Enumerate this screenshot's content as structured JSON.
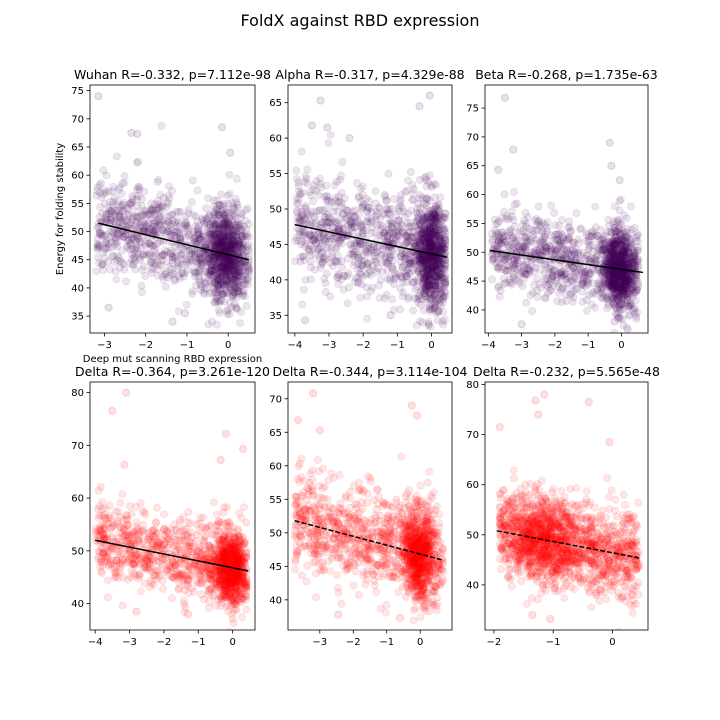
{
  "figure": {
    "title": "FoldX against RBD expression"
  },
  "chart_data": [
    {
      "type": "scatter",
      "title": "Wuhan R=-0.332, p=7.112e-98",
      "xlabel": "Deep mut scanning RBD expression",
      "ylabel": "Energy for folding stability",
      "xlim": [
        -3.35,
        0.65
      ],
      "ylim": [
        32,
        76
      ],
      "xticks": [
        -3,
        -2,
        -1,
        0
      ],
      "yticks": [
        35,
        40,
        45,
        50,
        55,
        60,
        65,
        70,
        75
      ],
      "color": "#440154",
      "line_color": "#000000",
      "line_style": "solid",
      "fit": {
        "x": [
          -3.15,
          0.5
        ],
        "y": [
          51.5,
          45.0
        ]
      },
      "cloud": {
        "n": 1500,
        "x_range": [
          -3.2,
          0.5
        ],
        "y_mean": 47.5,
        "y_sd": 4.2,
        "cluster_x": -0.05,
        "cluster_sd": 0.25,
        "cluster_frac": 0.45
      },
      "outliers": [
        [
          -3.15,
          74
        ],
        [
          -0.15,
          68.5
        ],
        [
          -2.35,
          67.5
        ],
        [
          -2.2,
          67.3
        ],
        [
          -1.35,
          34
        ],
        [
          -1.05,
          35.5
        ],
        [
          0.05,
          64
        ],
        [
          -2.9,
          36.5
        ]
      ]
    },
    {
      "type": "scatter",
      "title": "Alpha R=-0.317, p=4.329e-88",
      "xlabel": "",
      "ylabel": "",
      "xlim": [
        -4.2,
        0.6
      ],
      "ylim": [
        32.5,
        67.5
      ],
      "xticks": [
        -4,
        -3,
        -2,
        -1,
        0
      ],
      "yticks": [
        35,
        40,
        45,
        50,
        55,
        60,
        65
      ],
      "color": "#440154",
      "line_color": "#000000",
      "line_style": "solid",
      "fit": {
        "x": [
          -4.0,
          0.45
        ],
        "y": [
          47.8,
          43.2
        ]
      },
      "cloud": {
        "n": 1500,
        "x_range": [
          -4.0,
          0.4
        ],
        "y_mean": 45.0,
        "y_sd": 3.8,
        "cluster_x": -0.05,
        "cluster_sd": 0.25,
        "cluster_frac": 0.45
      },
      "outliers": [
        [
          -3.25,
          65.3
        ],
        [
          -0.05,
          66
        ],
        [
          -0.35,
          64.5
        ],
        [
          -3.5,
          61.8
        ],
        [
          -3.05,
          61.5
        ],
        [
          -2.4,
          60
        ],
        [
          -1.2,
          35
        ],
        [
          -3.7,
          34.3
        ],
        [
          0.2,
          35.5
        ]
      ]
    },
    {
      "type": "scatter",
      "title": "Beta R=-0.268, p=1.735e-63",
      "xlabel": "",
      "ylabel": "",
      "xlim": [
        -4.1,
        0.8
      ],
      "ylim": [
        36,
        79
      ],
      "xticks": [
        -4,
        -3,
        -2,
        -1,
        0
      ],
      "yticks": [
        40,
        45,
        50,
        55,
        60,
        65,
        70,
        75
      ],
      "color": "#440154",
      "line_color": "#000000",
      "line_style": "solid",
      "fit": {
        "x": [
          -3.95,
          0.65
        ],
        "y": [
          50.3,
          46.5
        ]
      },
      "cloud": {
        "n": 1500,
        "x_range": [
          -3.9,
          0.5
        ],
        "y_mean": 48.0,
        "y_sd": 3.5,
        "cluster_x": -0.05,
        "cluster_sd": 0.25,
        "cluster_frac": 0.45
      },
      "outliers": [
        [
          -3.5,
          76.8
        ],
        [
          -0.35,
          69
        ],
        [
          -3.25,
          67.8
        ],
        [
          -0.3,
          65
        ],
        [
          -3.7,
          64.3
        ],
        [
          -0.05,
          62.5
        ],
        [
          -3.0,
          37.5
        ],
        [
          -0.2,
          38
        ]
      ]
    },
    {
      "type": "scatter",
      "title": "Delta R=-0.364, p=3.261e-120",
      "xlabel": "",
      "ylabel": "",
      "xlim": [
        -4.15,
        0.65
      ],
      "ylim": [
        35,
        82
      ],
      "xticks": [
        -4,
        -3,
        -2,
        -1,
        0
      ],
      "yticks": [
        40,
        50,
        60,
        70,
        80
      ],
      "color": "#ff0000",
      "line_color": "#000000",
      "line_style": "solid",
      "fit": {
        "x": [
          -4.0,
          0.45
        ],
        "y": [
          52.0,
          46.2
        ]
      },
      "cloud": {
        "n": 1500,
        "x_range": [
          -4.0,
          0.4
        ],
        "y_mean": 49.0,
        "y_sd": 3.7,
        "cluster_x": -0.05,
        "cluster_sd": 0.25,
        "cluster_frac": 0.45
      },
      "outliers": [
        [
          -3.1,
          80
        ],
        [
          -3.5,
          76.5
        ],
        [
          -0.2,
          72.2
        ],
        [
          0.3,
          69.3
        ],
        [
          -0.35,
          67.2
        ],
        [
          -3.15,
          66.3
        ],
        [
          -2.8,
          38.5
        ],
        [
          -1.3,
          38
        ]
      ]
    },
    {
      "type": "scatter",
      "title": "Delta R=-0.344, p=3.114e-104",
      "xlabel": "",
      "ylabel": "",
      "xlim": [
        -3.95,
        0.95
      ],
      "ylim": [
        35.5,
        72.5
      ],
      "xticks": [
        -3,
        -2,
        -1,
        0
      ],
      "yticks": [
        40,
        45,
        50,
        55,
        60,
        65,
        70
      ],
      "color": "#ff0000",
      "line_color": "#000000",
      "line_style": "dashed",
      "fit": {
        "x": [
          -3.75,
          0.7
        ],
        "y": [
          51.8,
          45.9
        ]
      },
      "cloud": {
        "n": 1500,
        "x_range": [
          -3.75,
          0.7
        ],
        "y_mean": 48.5,
        "y_sd": 3.6,
        "cluster_x": -0.05,
        "cluster_sd": 0.25,
        "cluster_frac": 0.45
      },
      "outliers": [
        [
          -3.2,
          70.8
        ],
        [
          -3.65,
          66.8
        ],
        [
          -3.0,
          65.3
        ],
        [
          -0.25,
          69
        ],
        [
          -0.1,
          67.5
        ],
        [
          -2.45,
          37.8
        ],
        [
          -0.6,
          37.3
        ]
      ]
    },
    {
      "type": "scatter",
      "title": "Delta R=-0.232, p=5.565e-48",
      "xlabel": "",
      "ylabel": "",
      "xlim": [
        -2.15,
        0.6
      ],
      "ylim": [
        31,
        80.5
      ],
      "xticks": [
        -2,
        -1,
        0
      ],
      "yticks": [
        40,
        50,
        60,
        70,
        80
      ],
      "color": "#ff0000",
      "line_color": "#000000",
      "line_style": "dashed",
      "fit": {
        "x": [
          -1.95,
          0.45
        ],
        "y": [
          50.8,
          45.4
        ]
      },
      "cloud": {
        "n": 1700,
        "x_range": [
          -1.9,
          0.45
        ],
        "y_mean": 48.0,
        "y_sd": 4.2,
        "cluster_x": -1.15,
        "cluster_sd": 0.3,
        "cluster_frac": 0.35
      },
      "outliers": [
        [
          -1.15,
          78
        ],
        [
          -1.3,
          76.8
        ],
        [
          -0.4,
          76.5
        ],
        [
          -1.25,
          74
        ],
        [
          -1.9,
          71.5
        ],
        [
          -1.35,
          34
        ],
        [
          -1.05,
          33.2
        ],
        [
          -0.05,
          68.5
        ]
      ]
    }
  ]
}
